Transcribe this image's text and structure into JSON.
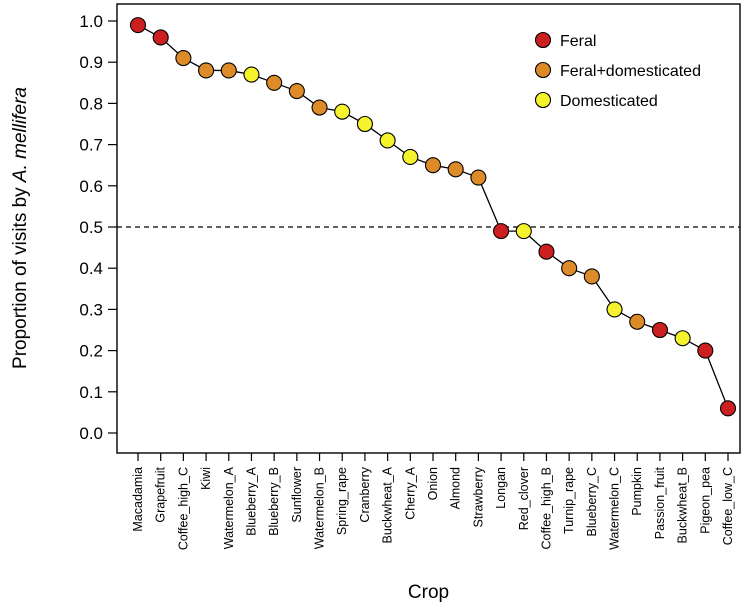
{
  "chart_data": {
    "type": "scatter",
    "connected": true,
    "title": "",
    "xlabel": "Crop",
    "ylabel_prefix": "Proportion of visits by ",
    "ylabel_italic": "A. mellifera",
    "ylim": [
      0.0,
      1.0
    ],
    "yticks": [
      "0.0",
      "0.1",
      "0.2",
      "0.3",
      "0.4",
      "0.5",
      "0.6",
      "0.7",
      "0.8",
      "0.9",
      "1.0"
    ],
    "reference_line": {
      "y": 0.5,
      "style": "dashed"
    },
    "grid": false,
    "legend_position": "top-right",
    "legend": [
      {
        "label": "Feral",
        "key": "feral"
      },
      {
        "label": "Feral+domesticated",
        "key": "mixed"
      },
      {
        "label": "Domesticated",
        "key": "domesticated"
      }
    ],
    "colors": {
      "feral": "#cc1f1f",
      "mixed": "#dd8a28",
      "domesticated": "#f5f22e"
    },
    "categories": [
      "Macadamia",
      "Grapefruit",
      "Coffee_high_C",
      "Kiwi",
      "Watermelon_A",
      "Blueberry_A",
      "Blueberry_B",
      "Sunflower",
      "Watermelon_B",
      "Spring_rape",
      "Cranberry",
      "Buckwheat_A",
      "Cherry_A",
      "Onion",
      "Almond",
      "Strawberry",
      "Longan",
      "Red_clover",
      "Coffee_high_B",
      "Turnip_rape",
      "Blueberry_C",
      "Watermelon_C",
      "Pumpkin",
      "Passion_fruit",
      "Buckwheat_B",
      "Pigeon_pea",
      "Coffee_low_C"
    ],
    "values": [
      0.99,
      0.96,
      0.91,
      0.88,
      0.88,
      0.87,
      0.85,
      0.83,
      0.79,
      0.78,
      0.75,
      0.71,
      0.67,
      0.65,
      0.64,
      0.62,
      0.49,
      0.49,
      0.44,
      0.4,
      0.38,
      0.3,
      0.27,
      0.25,
      0.23,
      0.2,
      0.06
    ],
    "groups": [
      "feral",
      "feral",
      "mixed",
      "mixed",
      "mixed",
      "domesticated",
      "mixed",
      "mixed",
      "mixed",
      "domesticated",
      "domesticated",
      "domesticated",
      "domesticated",
      "mixed",
      "mixed",
      "mixed",
      "feral",
      "domesticated",
      "feral",
      "mixed",
      "mixed",
      "domesticated",
      "mixed",
      "feral",
      "domesticated",
      "feral",
      "feral"
    ]
  }
}
